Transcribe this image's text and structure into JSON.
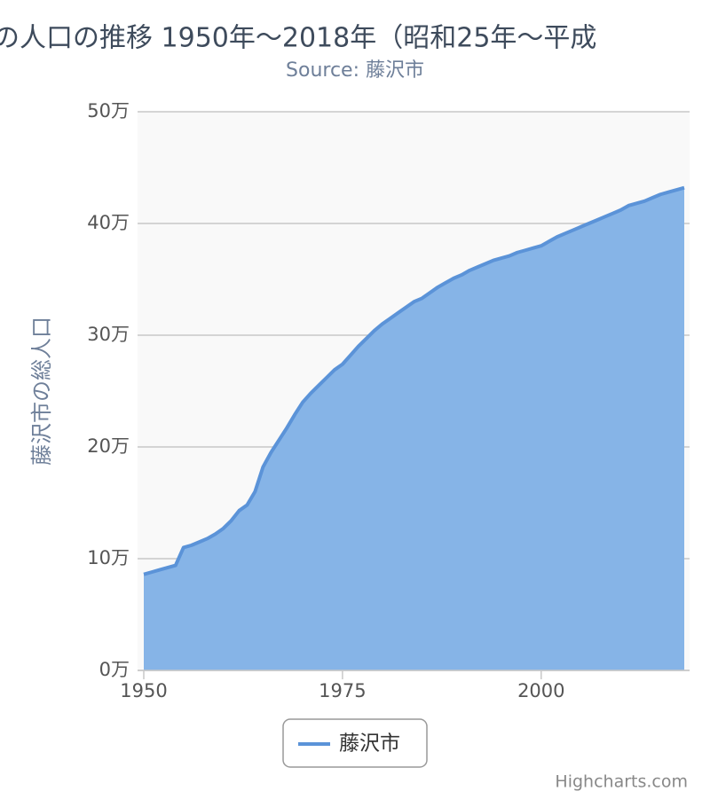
{
  "chart_data": {
    "type": "area",
    "title": "の人口の推移 1950年～2018年（昭和25年～平成",
    "subtitle": "Source: 藤沢市",
    "y_label": "藤沢市の総人口",
    "credits": "Highcharts.com",
    "x": [
      1950,
      1951,
      1952,
      1953,
      1954,
      1955,
      1956,
      1957,
      1958,
      1959,
      1960,
      1961,
      1962,
      1963,
      1964,
      1965,
      1966,
      1967,
      1968,
      1969,
      1970,
      1971,
      1972,
      1973,
      1974,
      1975,
      1976,
      1977,
      1978,
      1979,
      1980,
      1981,
      1982,
      1983,
      1984,
      1985,
      1986,
      1987,
      1988,
      1989,
      1990,
      1991,
      1992,
      1993,
      1994,
      1995,
      1996,
      1997,
      1998,
      1999,
      2000,
      2001,
      2002,
      2003,
      2004,
      2005,
      2006,
      2007,
      2008,
      2009,
      2010,
      2011,
      2012,
      2013,
      2014,
      2015,
      2016,
      2017,
      2018
    ],
    "series": [
      {
        "name": "藤沢市",
        "color": "#5b93d8",
        "fill": "#86b4e7",
        "values": [
          86000,
          88000,
          90000,
          92000,
          94000,
          110000,
          112000,
          115000,
          118000,
          122000,
          127000,
          134000,
          143000,
          148000,
          160000,
          182000,
          195000,
          206000,
          217000,
          229000,
          240000,
          248000,
          255000,
          262000,
          269000,
          274000,
          282000,
          290000,
          297000,
          304000,
          310000,
          315000,
          320000,
          325000,
          330000,
          333000,
          338000,
          343000,
          347000,
          351000,
          354000,
          358000,
          361000,
          364000,
          367000,
          369000,
          371000,
          374000,
          376000,
          378000,
          380000,
          384000,
          388000,
          391000,
          394000,
          397000,
          400000,
          403000,
          406000,
          409000,
          412000,
          416000,
          418000,
          420000,
          423000,
          426000,
          428000,
          430000,
          432000
        ]
      }
    ],
    "xlim": [
      1950,
      2018
    ],
    "xticks": [
      1950,
      1975,
      2000
    ],
    "ylim": [
      0,
      500000
    ],
    "yticks": [
      {
        "value": 0,
        "label": "0万"
      },
      {
        "value": 100000,
        "label": "10万"
      },
      {
        "value": 200000,
        "label": "20万"
      },
      {
        "value": 300000,
        "label": "30万"
      },
      {
        "value": 400000,
        "label": "40万"
      },
      {
        "value": 500000,
        "label": "50万"
      }
    ],
    "grid": true
  }
}
